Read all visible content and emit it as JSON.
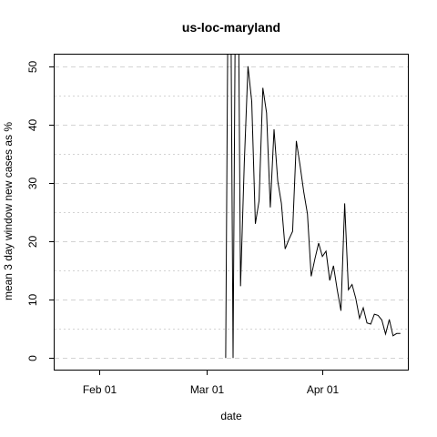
{
  "chart_data": {
    "type": "line",
    "title": "us-loc-maryland",
    "xlabel": "date",
    "ylabel": "mean  3  day window new cases as %",
    "x_ticks": [
      {
        "date": "2020-02-01",
        "label": "Feb 01"
      },
      {
        "date": "2020-03-01",
        "label": "Mar 01"
      },
      {
        "date": "2020-04-01",
        "label": "Apr 01"
      }
    ],
    "y_ticks": [
      0,
      10,
      20,
      30,
      40,
      50
    ],
    "xlim": [
      "2020-01-20",
      "2020-04-24"
    ],
    "ylim": [
      -2,
      52
    ],
    "grid": "dashed horizontal",
    "line_color": "#000000",
    "grid_color": "#d3d3d3",
    "series": [
      {
        "x": [
          "2020-03-06",
          "2020-03-07",
          "2020-03-08",
          "2020-03-09",
          "2020-03-10",
          "2020-03-11",
          "2020-03-12",
          "2020-03-13",
          "2020-03-14",
          "2020-03-15",
          "2020-03-16",
          "2020-03-17",
          "2020-03-18",
          "2020-03-19",
          "2020-03-20",
          "2020-03-21",
          "2020-03-22",
          "2020-03-23",
          "2020-03-24",
          "2020-03-25",
          "2020-03-26",
          "2020-03-27",
          "2020-03-28",
          "2020-03-29",
          "2020-03-30",
          "2020-03-31",
          "2020-04-01",
          "2020-04-02",
          "2020-04-03",
          "2020-04-04",
          "2020-04-05",
          "2020-04-06",
          "2020-04-07",
          "2020-04-08",
          "2020-04-09",
          "2020-04-10",
          "2020-04-11",
          "2020-04-12",
          "2020-04-13",
          "2020-04-14",
          "2020-04-15",
          "2020-04-16",
          "2020-04-17",
          "2020-04-18",
          "2020-04-19",
          "2020-04-20",
          "2020-04-21",
          "2020-04-22"
        ],
        "y": [
          0,
          100,
          0,
          100,
          12.3,
          33.3,
          50,
          44,
          23,
          27,
          46.3,
          42,
          25.8,
          39.2,
          30.3,
          26.5,
          18.7,
          20.3,
          21.7,
          37.2,
          33,
          28.5,
          24.7,
          14,
          17,
          19.7,
          17.4,
          18.3,
          13.3,
          15.8,
          11.7,
          8.1,
          26.5,
          11.7,
          12.6,
          10.2,
          6.8,
          8.6,
          6,
          5.8,
          7.5,
          7.3,
          6.5,
          4.1,
          6.6,
          3.8,
          4.2,
          4.2
        ]
      }
    ]
  }
}
